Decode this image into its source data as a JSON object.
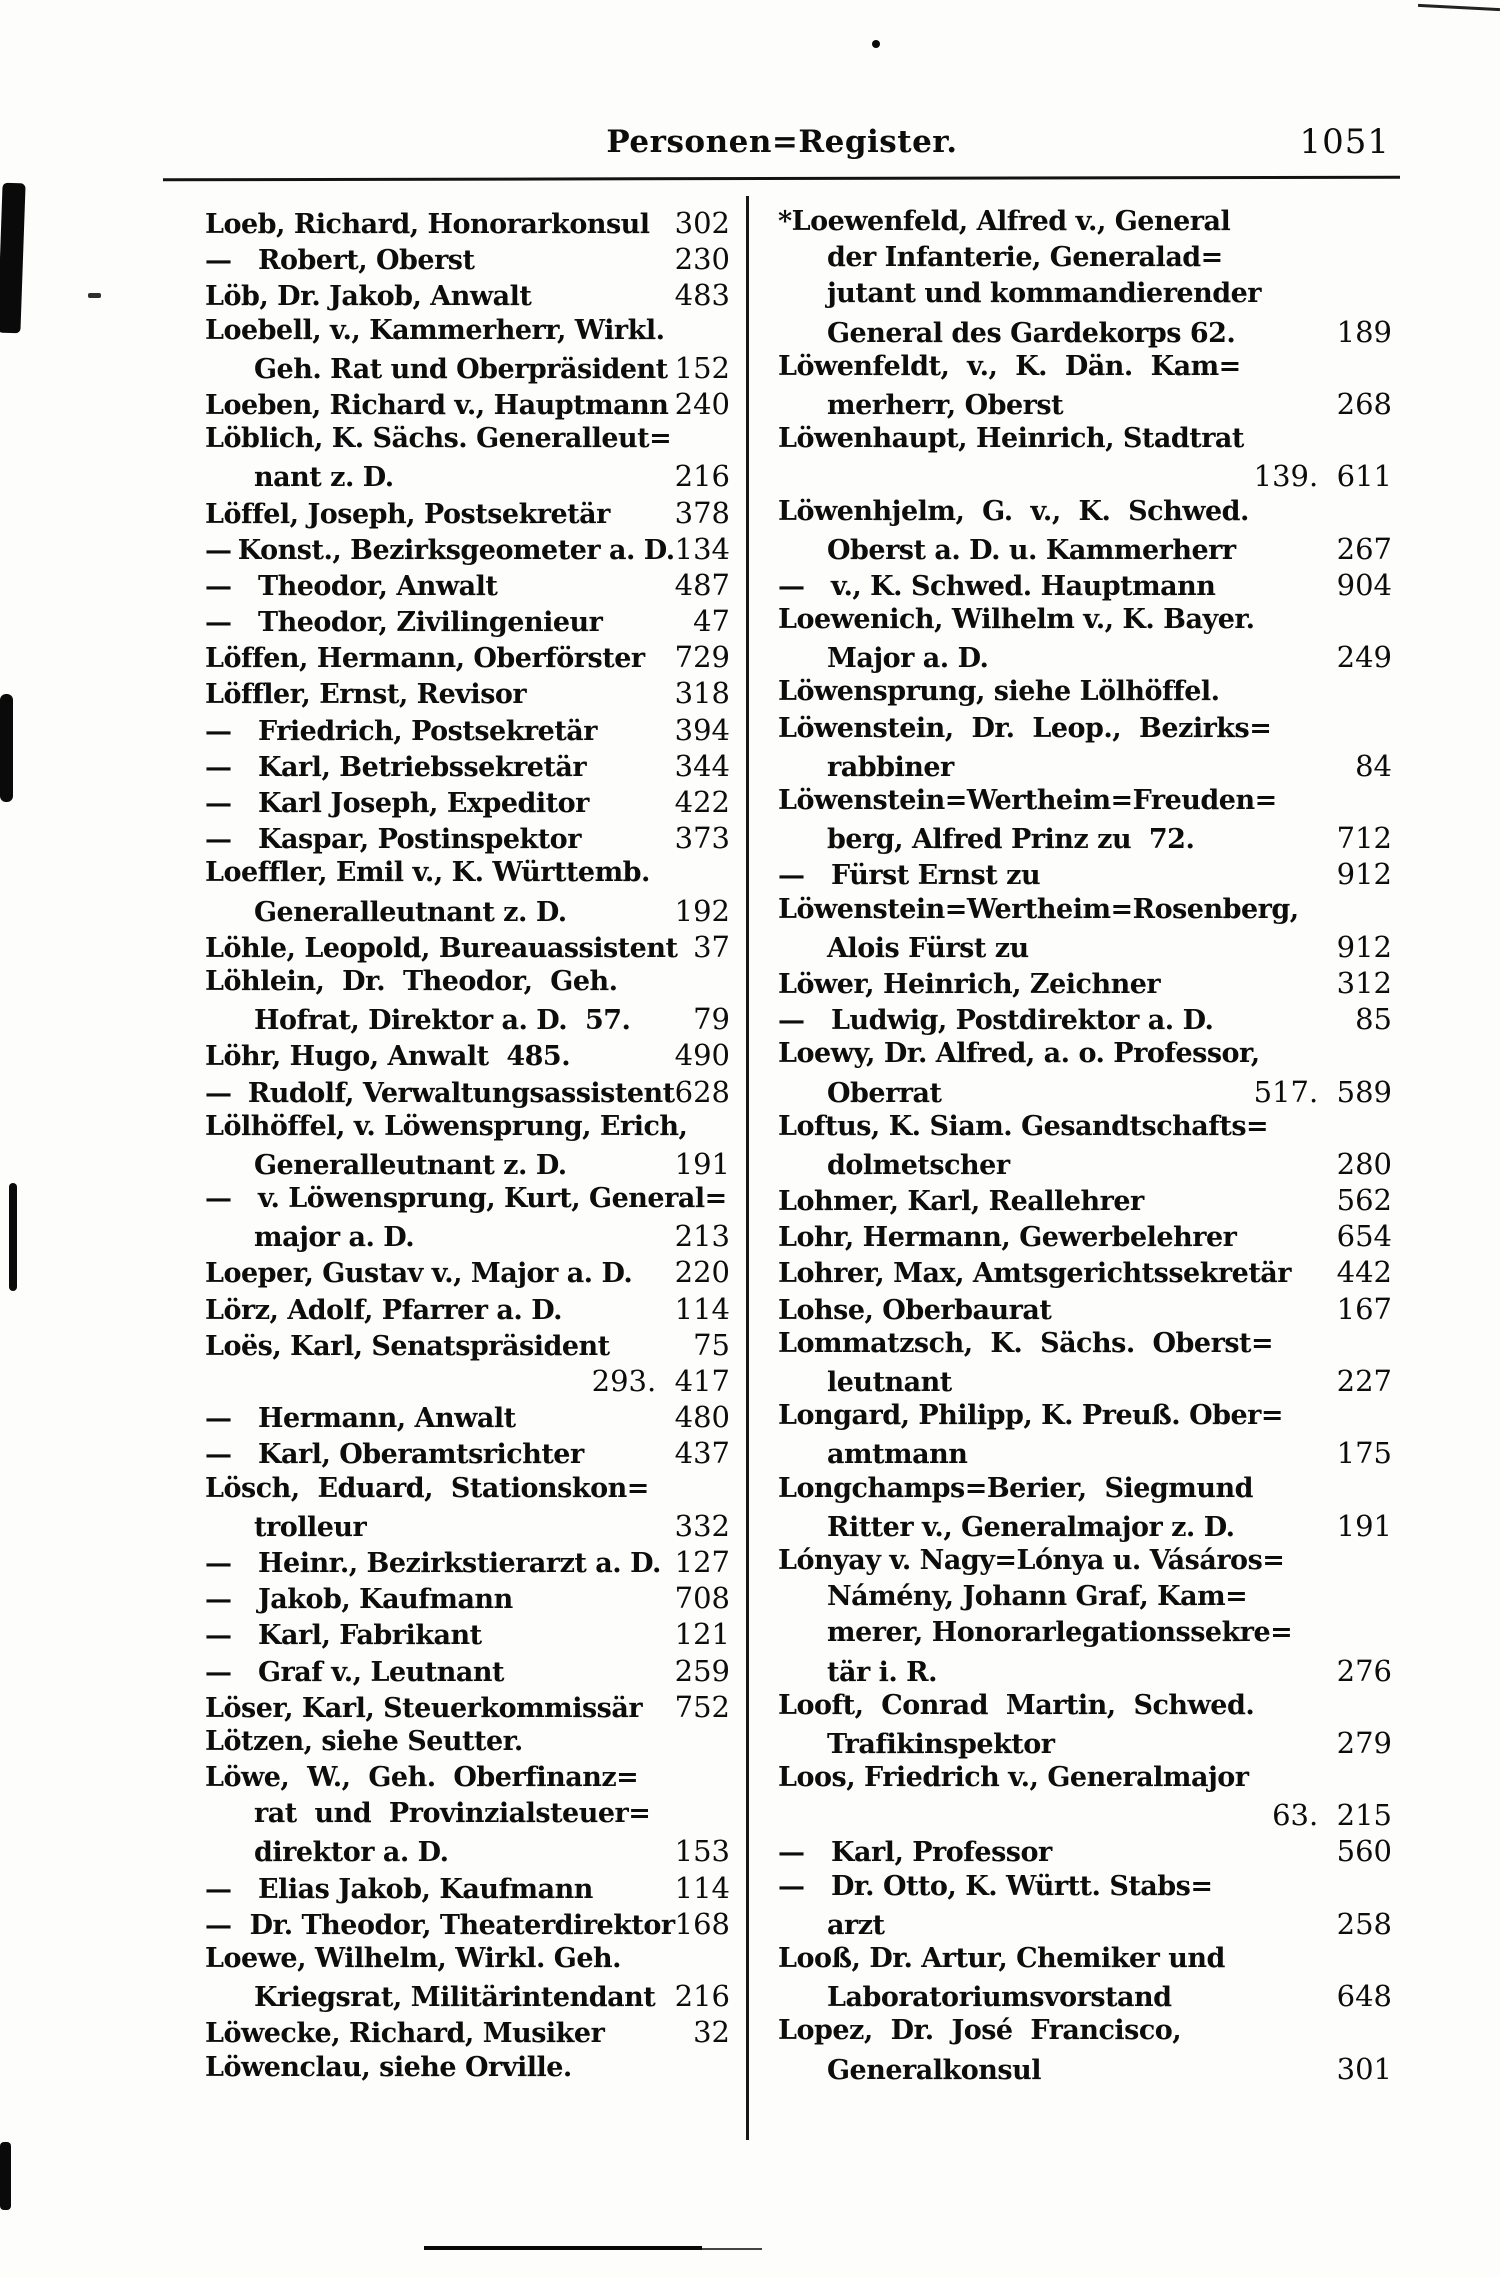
{
  "header": {
    "title": "Personen=Register.",
    "page_number": "1051"
  },
  "dash_glyph": "—",
  "columns": {
    "left": {
      "lines": [
        {
          "style": "n",
          "text": "Loeb, Richard, Honorarkonsul",
          "num": "302"
        },
        {
          "style": "d",
          "text": "Robert, Oberst",
          "num": "230"
        },
        {
          "style": "n",
          "text": "Löb, Dr. Jakob, Anwalt",
          "num": "483"
        },
        {
          "style": "n",
          "text": "Loebell, v., Kammerherr, Wirkl."
        },
        {
          "style": "c",
          "text": "Geh. Rat und Oberpräsident",
          "num": "152"
        },
        {
          "style": "n",
          "text": "Loeben, Richard v., Hauptmann",
          "num": "240"
        },
        {
          "style": "n",
          "text": "Löblich, K. Sächs. Generalleut="
        },
        {
          "style": "c",
          "text": "nant z. D.",
          "num": "216"
        },
        {
          "style": "n",
          "text": "Löffel, Joseph, Postsekretär",
          "num": "378"
        },
        {
          "style": "d",
          "text": "Konst., Bezirksgeometer a. D.",
          "num": "134"
        },
        {
          "style": "d",
          "text": "Theodor, Anwalt",
          "num": "487"
        },
        {
          "style": "d",
          "text": "Theodor, Zivilingenieur",
          "num": "47"
        },
        {
          "style": "n",
          "text": "Löffen, Hermann, Oberförster",
          "num": "729"
        },
        {
          "style": "n",
          "text": "Löffler, Ernst, Revisor",
          "num": "318"
        },
        {
          "style": "d",
          "text": "Friedrich, Postsekretär",
          "num": "394"
        },
        {
          "style": "d",
          "text": "Karl, Betriebssekretär",
          "num": "344"
        },
        {
          "style": "d",
          "text": "Karl Joseph, Expeditor",
          "num": "422"
        },
        {
          "style": "d",
          "text": "Kaspar, Postinspektor",
          "num": "373"
        },
        {
          "style": "n",
          "text": "Loeffler, Emil v., K. Württemb."
        },
        {
          "style": "c",
          "text": "Generalleutnant z. D.",
          "num": "192"
        },
        {
          "style": "n",
          "text": "Löhle, Leopold, Bureauassistent",
          "num": "37"
        },
        {
          "style": "n",
          "text": "Löhlein,  Dr.  Theodor,  Geh."
        },
        {
          "style": "c",
          "text": "Hofrat, Direktor a. D.  57.",
          "num": "79"
        },
        {
          "style": "n",
          "text": "Löhr, Hugo, Anwalt  485.",
          "num": "490"
        },
        {
          "style": "d",
          "text": "Rudolf, Verwaltungsassistent",
          "num": "628"
        },
        {
          "style": "n",
          "text": "Lölhöffel, v. Löwensprung, Erich,"
        },
        {
          "style": "c",
          "text": "Generalleutnant z. D.",
          "num": "191"
        },
        {
          "style": "d",
          "text": "v. Löwensprung, Kurt, General="
        },
        {
          "style": "c",
          "text": "major a. D.",
          "num": "213"
        },
        {
          "style": "n",
          "text": "Loeper, Gustav v., Major a. D.",
          "num": "220"
        },
        {
          "style": "n",
          "text": "Lörz, Adolf, Pfarrer a. D.",
          "num": "114"
        },
        {
          "style": "n",
          "text": "Loës, Karl, Senatspräsident",
          "num": "75"
        },
        {
          "style": "p",
          "num": "293.  417"
        },
        {
          "style": "d",
          "text": "Hermann, Anwalt",
          "num": "480"
        },
        {
          "style": "d",
          "text": "Karl, Oberamtsrichter",
          "num": "437"
        },
        {
          "style": "n",
          "text": "Lösch,  Eduard,  Stationskon="
        },
        {
          "style": "c",
          "text": "trolleur",
          "num": "332"
        },
        {
          "style": "d",
          "text": "Heinr., Bezirkstierarzt a. D.",
          "num": "127"
        },
        {
          "style": "d",
          "text": "Jakob, Kaufmann",
          "num": "708"
        },
        {
          "style": "d",
          "text": "Karl, Fabrikant",
          "num": "121"
        },
        {
          "style": "d",
          "text": "Graf v., Leutnant",
          "num": "259"
        },
        {
          "style": "n",
          "text": "Löser, Karl, Steuerkommissär",
          "num": "752"
        },
        {
          "style": "n",
          "text": "Lötzen, siehe Seutter."
        },
        {
          "style": "n",
          "text": "Löwe,  W.,  Geh.  Oberfinanz="
        },
        {
          "style": "c",
          "text": "rat  und  Provinzialsteuer="
        },
        {
          "style": "c",
          "text": "direktor a. D.",
          "num": "153"
        },
        {
          "style": "d",
          "text": "Elias Jakob, Kaufmann",
          "num": "114"
        },
        {
          "style": "d",
          "text": "Dr. Theodor, Theaterdirektor",
          "num": "168"
        },
        {
          "style": "n",
          "text": "Loewe, Wilhelm, Wirkl. Geh."
        },
        {
          "style": "c",
          "text": "Kriegsrat, Militärintendant",
          "num": "216"
        },
        {
          "style": "n",
          "text": "Löwecke, Richard, Musiker",
          "num": "32"
        },
        {
          "style": "n",
          "text": "Löwenclau, siehe Orville."
        }
      ]
    },
    "right": {
      "lines": [
        {
          "style": "n",
          "text": "*Loewenfeld, Alfred v., General"
        },
        {
          "style": "c",
          "text": "der Infanterie, Generalad="
        },
        {
          "style": "c",
          "text": "jutant und kommandierender"
        },
        {
          "style": "c",
          "text": "General des Gardekorps 62.",
          "num": "189"
        },
        {
          "style": "n",
          "text": "Löwenfeldt,  v.,  K.  Dän.  Kam="
        },
        {
          "style": "c",
          "text": "merherr, Oberst",
          "num": "268"
        },
        {
          "style": "n",
          "text": "Löwenhaupt, Heinrich, Stadtrat"
        },
        {
          "style": "p",
          "num": "139.  611"
        },
        {
          "style": "n",
          "text": "Löwenhjelm,  G.  v.,  K.  Schwed."
        },
        {
          "style": "c",
          "text": "Oberst a. D. u. Kammerherr",
          "num": "267"
        },
        {
          "style": "d",
          "text": "v., K. Schwed. Hauptmann",
          "num": "904"
        },
        {
          "style": "n",
          "text": "Loewenich, Wilhelm v., K. Bayer."
        },
        {
          "style": "c",
          "text": "Major a. D.",
          "num": "249"
        },
        {
          "style": "n",
          "text": "Löwensprung, siehe Lölhöffel."
        },
        {
          "style": "n",
          "text": "Löwenstein,  Dr.  Leop.,  Bezirks="
        },
        {
          "style": "c",
          "text": "rabbiner",
          "num": "84"
        },
        {
          "style": "n",
          "text": "Löwenstein=Wertheim=Freuden="
        },
        {
          "style": "c",
          "text": "berg, Alfred Prinz zu  72.",
          "num": "712"
        },
        {
          "style": "d",
          "text": "Fürst Ernst zu",
          "num": "912"
        },
        {
          "style": "n",
          "text": "Löwenstein=Wertheim=Rosenberg,"
        },
        {
          "style": "c",
          "text": "Alois Fürst zu",
          "num": "912"
        },
        {
          "style": "n",
          "text": "Löwer, Heinrich, Zeichner",
          "num": "312"
        },
        {
          "style": "d",
          "text": "Ludwig, Postdirektor a. D.",
          "num": "85"
        },
        {
          "style": "n",
          "text": "Loewy, Dr. Alfred, a. o. Professor,"
        },
        {
          "style": "c",
          "text": "Oberrat",
          "num": "517.  589"
        },
        {
          "style": "n",
          "text": "Loftus, K. Siam. Gesandtschafts="
        },
        {
          "style": "c",
          "text": "dolmetscher",
          "num": "280"
        },
        {
          "style": "n",
          "text": "Lohmer, Karl, Reallehrer",
          "num": "562"
        },
        {
          "style": "n",
          "text": "Lohr, Hermann, Gewerbelehrer",
          "num": "654"
        },
        {
          "style": "n",
          "text": "Lohrer, Max, Amtsgerichtssekretär",
          "num": "442"
        },
        {
          "style": "n",
          "text": "Lohse, Oberbaurat",
          "num": "167"
        },
        {
          "style": "n",
          "text": "Lommatzsch,  K.  Sächs.  Oberst="
        },
        {
          "style": "c",
          "text": "leutnant",
          "num": "227"
        },
        {
          "style": "n",
          "text": "Longard, Philipp, K. Preuß. Ober="
        },
        {
          "style": "c",
          "text": "amtmann",
          "num": "175"
        },
        {
          "style": "n",
          "text": "Longchamps=Berier,  Siegmund"
        },
        {
          "style": "c",
          "text": "Ritter v., Generalmajor z. D.",
          "num": "191"
        },
        {
          "style": "n",
          "text": "Lónyay v. Nagy=Lónya u. Vásáros="
        },
        {
          "style": "c",
          "text": "Námény, Johann Graf, Kam="
        },
        {
          "style": "c",
          "text": "merer, Honorarlegationssekre="
        },
        {
          "style": "c",
          "text": "tär i. R.",
          "num": "276"
        },
        {
          "style": "n",
          "text": "Looft,  Conrad  Martin,  Schwed."
        },
        {
          "style": "c",
          "text": "Trafikinspektor",
          "num": "279"
        },
        {
          "style": "n",
          "text": "Loos, Friedrich v., Generalmajor"
        },
        {
          "style": "p",
          "num": "63.  215"
        },
        {
          "style": "d",
          "text": "Karl, Professor",
          "num": "560"
        },
        {
          "style": "d",
          "text": "Dr. Otto, K. Württ. Stabs="
        },
        {
          "style": "c",
          "text": "arzt",
          "num": "258"
        },
        {
          "style": "n",
          "text": "Looß, Dr. Artur, Chemiker und"
        },
        {
          "style": "c",
          "text": "Laboratoriumsvorstand",
          "num": "648"
        },
        {
          "style": "n",
          "text": "Lopez,  Dr.  José  Francisco,"
        },
        {
          "style": "c",
          "text": "Generalkonsul",
          "num": "301"
        }
      ]
    }
  }
}
